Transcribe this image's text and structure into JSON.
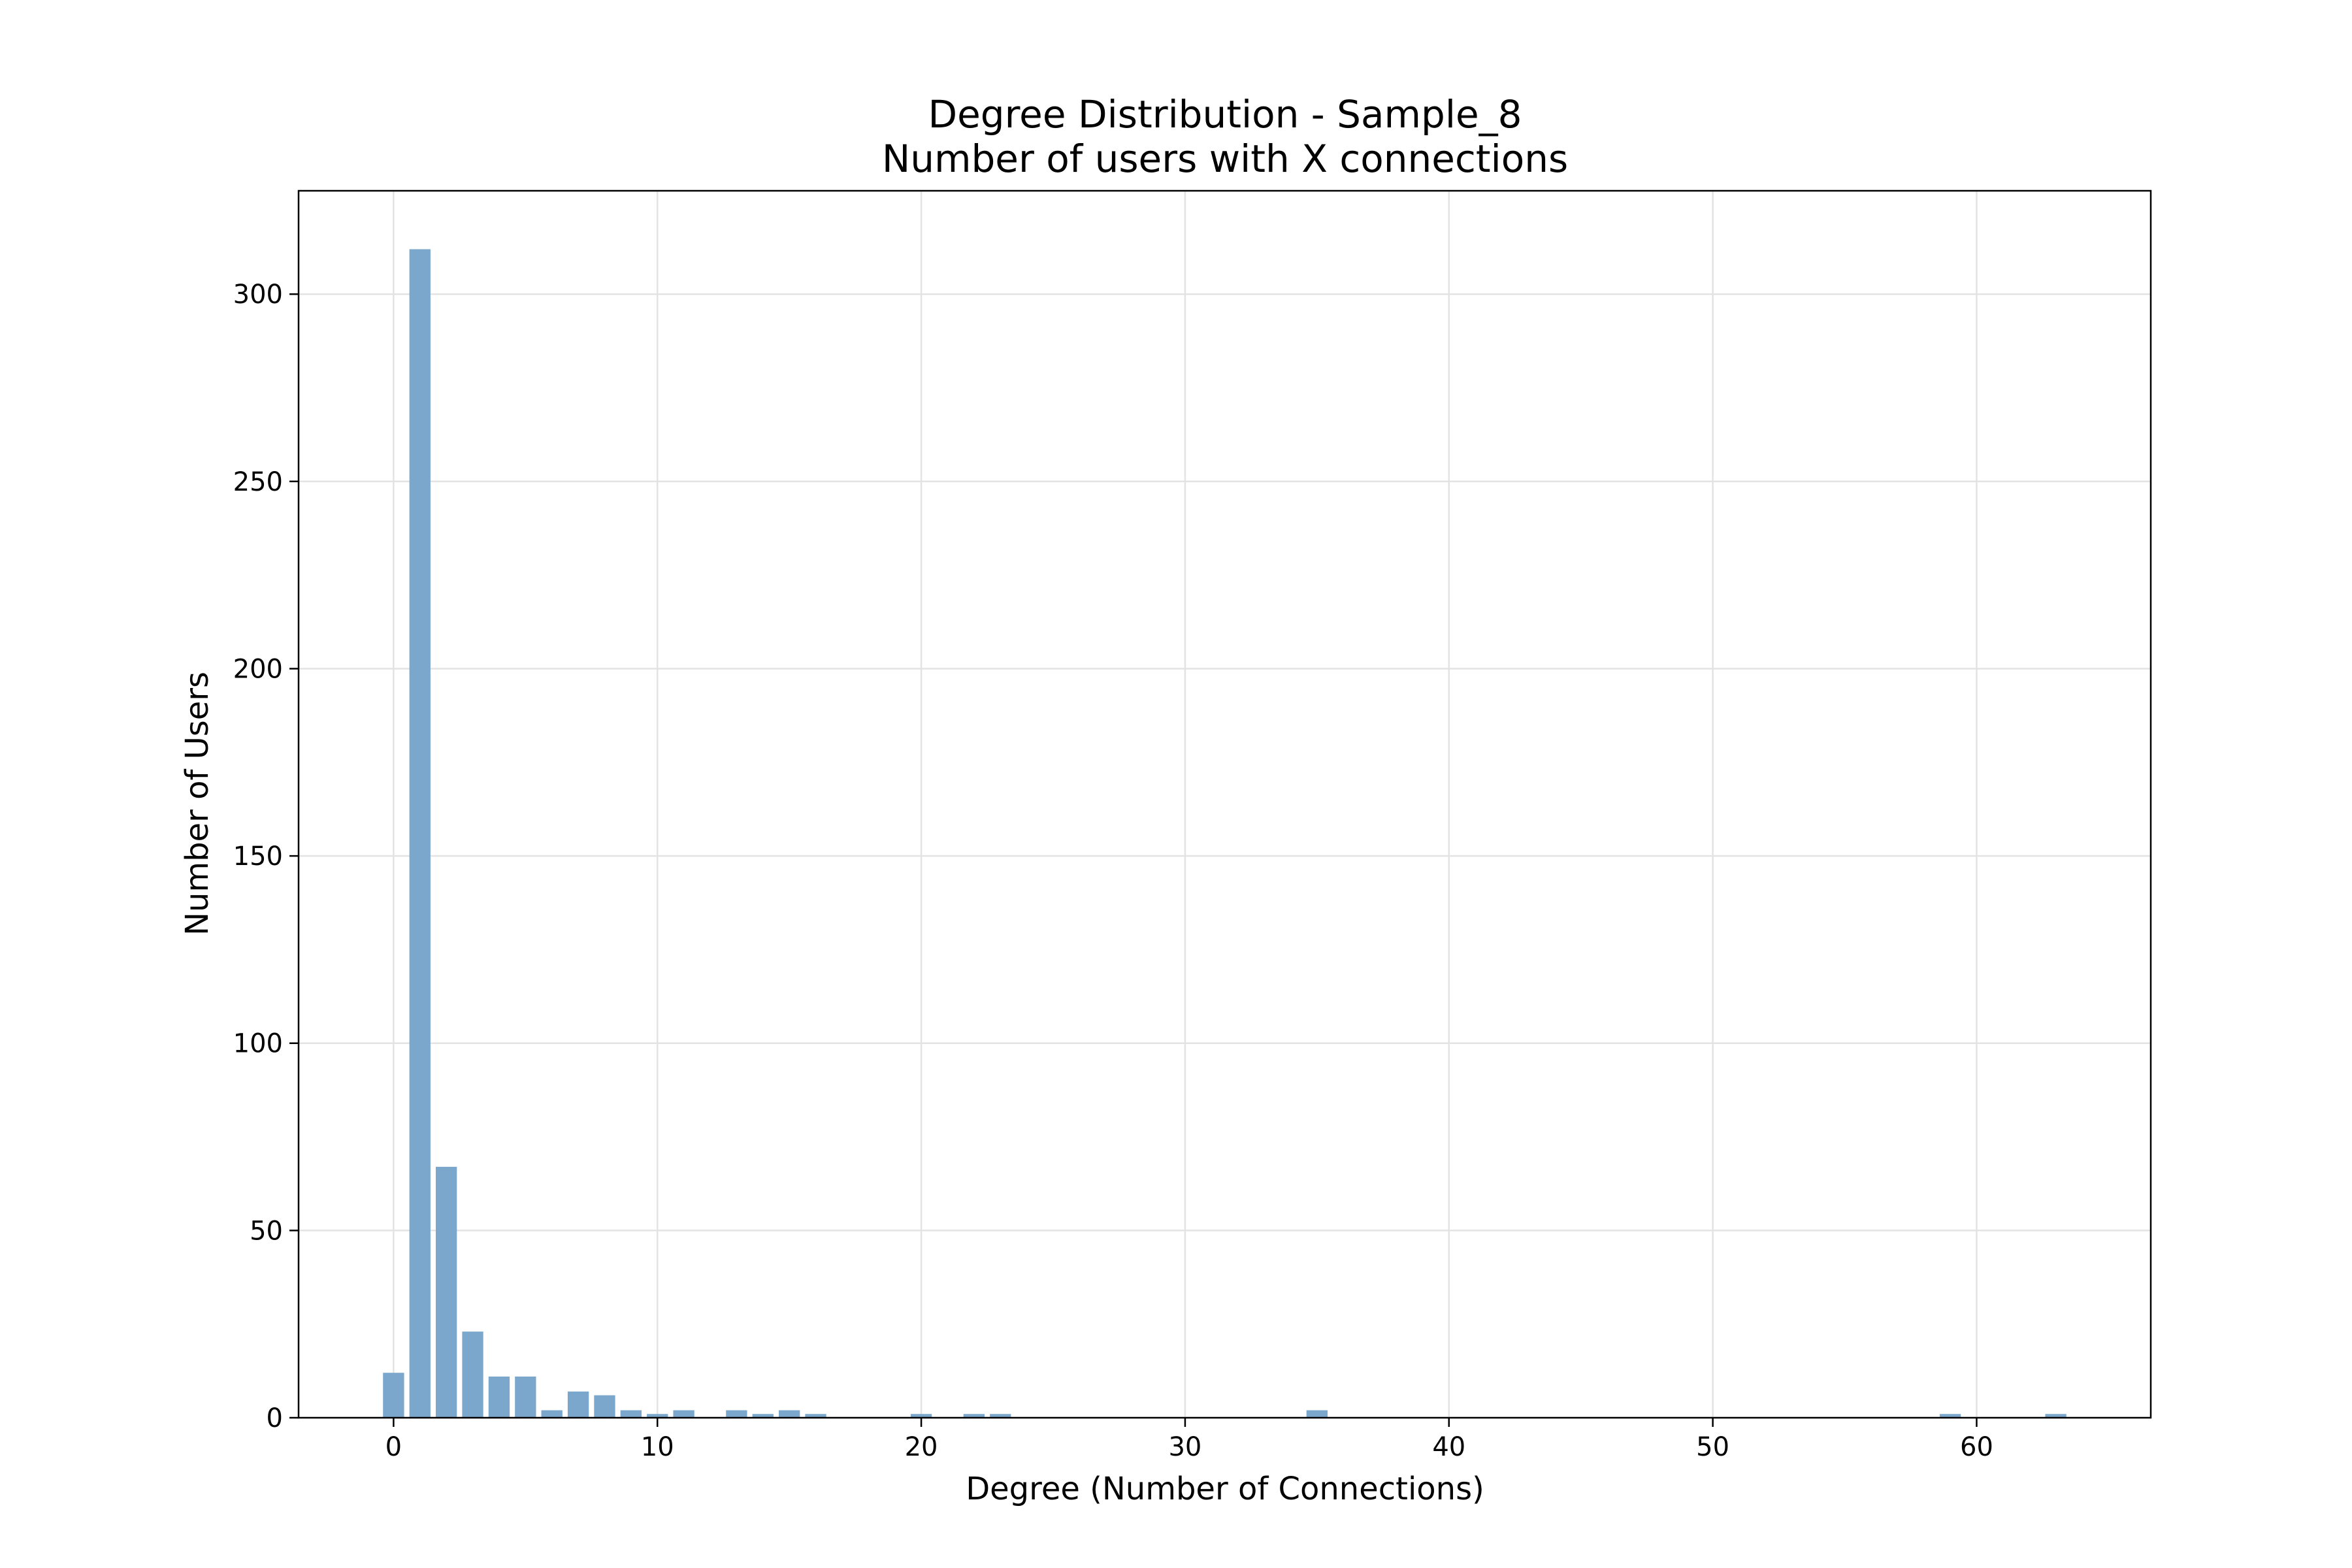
{
  "chart_data": {
    "type": "bar",
    "title": "Degree Distribution - Sample_8",
    "subtitle": "Number of users with X connections",
    "xlabel": "Degree (Number of Connections)",
    "ylabel": "Number of Users",
    "xlim": [
      -3.6,
      66.6
    ],
    "ylim": [
      0,
      327.6
    ],
    "xticks": [
      0,
      10,
      20,
      30,
      40,
      50,
      60
    ],
    "yticks": [
      0,
      50,
      100,
      150,
      200,
      250,
      300
    ],
    "grid": true,
    "bar_color": "#7ba7cc",
    "points": [
      {
        "x": 0,
        "y": 12
      },
      {
        "x": 1,
        "y": 312
      },
      {
        "x": 2,
        "y": 67
      },
      {
        "x": 3,
        "y": 23
      },
      {
        "x": 4,
        "y": 11
      },
      {
        "x": 5,
        "y": 11
      },
      {
        "x": 6,
        "y": 2
      },
      {
        "x": 7,
        "y": 7
      },
      {
        "x": 8,
        "y": 6
      },
      {
        "x": 9,
        "y": 2
      },
      {
        "x": 10,
        "y": 1
      },
      {
        "x": 11,
        "y": 2
      },
      {
        "x": 13,
        "y": 2
      },
      {
        "x": 14,
        "y": 1
      },
      {
        "x": 15,
        "y": 2
      },
      {
        "x": 16,
        "y": 1
      },
      {
        "x": 20,
        "y": 1
      },
      {
        "x": 22,
        "y": 1
      },
      {
        "x": 23,
        "y": 1
      },
      {
        "x": 35,
        "y": 2
      },
      {
        "x": 59,
        "y": 1
      },
      {
        "x": 63,
        "y": 1
      }
    ]
  }
}
